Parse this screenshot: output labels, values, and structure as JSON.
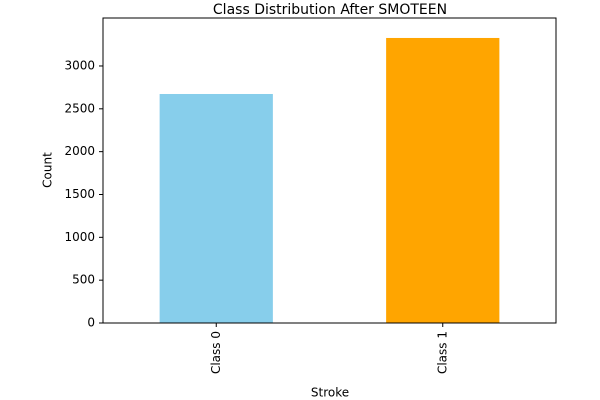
{
  "chart_data": {
    "type": "bar",
    "title": "Class Distribution After SMOTEEN",
    "x_label": "Stroke",
    "y_label": "Count",
    "categories": [
      "Class 0",
      "Class 1"
    ],
    "values": [
      2673,
      3327
    ],
    "colors": [
      "#87ceeb",
      "#ffa500"
    ],
    "ylim": [
      0,
      3560
    ],
    "yticks": [
      0,
      500,
      1000,
      1500,
      2000,
      2500,
      3000
    ],
    "grid": false
  }
}
